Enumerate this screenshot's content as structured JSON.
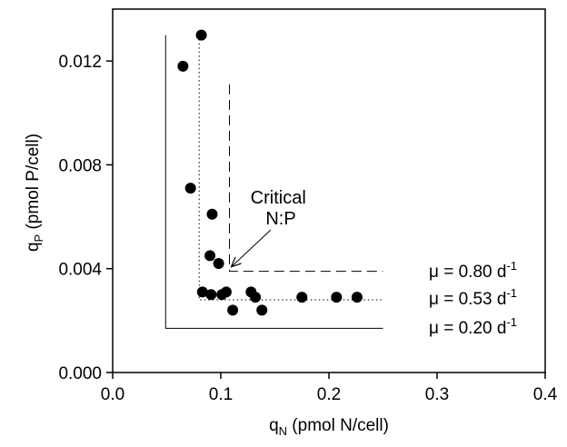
{
  "chart_data": {
    "type": "scatter",
    "xlabel": {
      "main": "q",
      "sub": "N",
      "rest": " (pmol N/cell)"
    },
    "ylabel": {
      "main": "q",
      "sub": "P",
      "rest": " (pmol P/cell)"
    },
    "xlim": [
      0.0,
      0.4
    ],
    "ylim": [
      0.0,
      0.014
    ],
    "x_ticks": [
      {
        "value": 0.0,
        "label": "0.0"
      },
      {
        "value": 0.1,
        "label": "0.1"
      },
      {
        "value": 0.2,
        "label": "0.2"
      },
      {
        "value": 0.3,
        "label": "0.3"
      },
      {
        "value": 0.4,
        "label": "0.4"
      }
    ],
    "y_ticks": [
      {
        "value": 0.0,
        "label": "0.000"
      },
      {
        "value": 0.004,
        "label": "0.004"
      },
      {
        "value": 0.008,
        "label": "0.008"
      },
      {
        "value": 0.012,
        "label": "0.012"
      }
    ],
    "points": [
      {
        "x": 0.065,
        "y": 0.0118
      },
      {
        "x": 0.082,
        "y": 0.013
      },
      {
        "x": 0.072,
        "y": 0.0071
      },
      {
        "x": 0.092,
        "y": 0.0061
      },
      {
        "x": 0.09,
        "y": 0.0045
      },
      {
        "x": 0.098,
        "y": 0.0042
      },
      {
        "x": 0.083,
        "y": 0.0031
      },
      {
        "x": 0.091,
        "y": 0.003
      },
      {
        "x": 0.101,
        "y": 0.003
      },
      {
        "x": 0.105,
        "y": 0.0031
      },
      {
        "x": 0.111,
        "y": 0.0024
      },
      {
        "x": 0.128,
        "y": 0.0031
      },
      {
        "x": 0.132,
        "y": 0.0029
      },
      {
        "x": 0.138,
        "y": 0.0024
      },
      {
        "x": 0.175,
        "y": 0.0029
      },
      {
        "x": 0.207,
        "y": 0.0029
      },
      {
        "x": 0.226,
        "y": 0.0029
      }
    ],
    "threshold_lines": [
      {
        "style": "solid",
        "x": 0.049,
        "y": 0.0017,
        "x_end": 0.25,
        "y_top": 0.013,
        "mu": "0.20"
      },
      {
        "style": "dotted",
        "x": 0.08,
        "y": 0.0028,
        "x_end": 0.25,
        "y_top": 0.013,
        "mu": "0.53"
      },
      {
        "style": "dashed",
        "x": 0.108,
        "y": 0.0039,
        "x_end": 0.25,
        "y_top": 0.0111,
        "mu": "0.80"
      }
    ],
    "mu_labels": [
      {
        "prefix": "μ = ",
        "value": "0.80",
        "unit": " d",
        "exp": "-1"
      },
      {
        "prefix": "μ = ",
        "value": "0.53",
        "unit": " d",
        "exp": "-1"
      },
      {
        "prefix": "μ = ",
        "value": "0.20",
        "unit": " d",
        "exp": "-1"
      }
    ],
    "annotation": {
      "lines": [
        "Critical",
        "N:P"
      ],
      "arrow_to": {
        "x": 0.108,
        "y": 0.004
      }
    },
    "grid": false,
    "legend": "none"
  }
}
